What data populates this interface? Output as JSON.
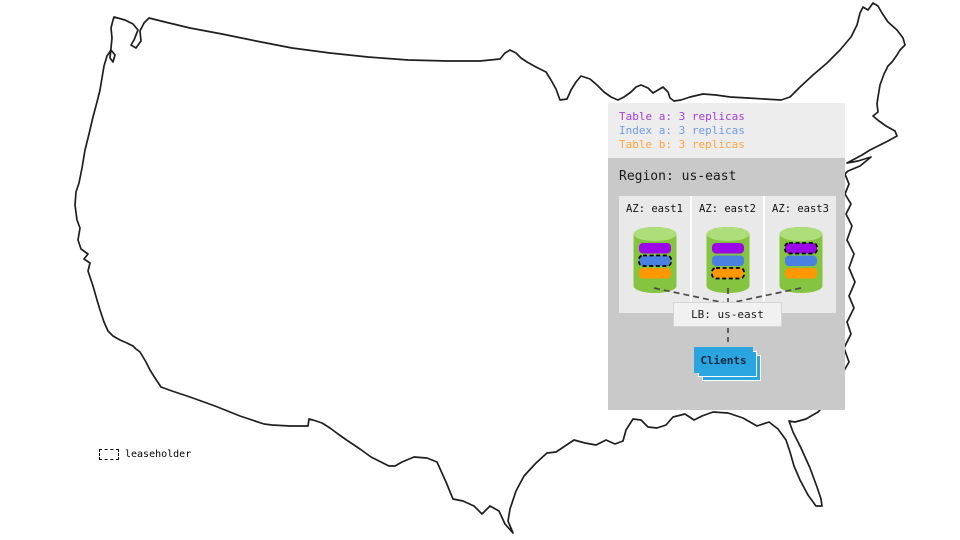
{
  "legend": {
    "items": [
      {
        "id": "table-a",
        "label": "Table a: 3 replicas",
        "color": "#a43ddb"
      },
      {
        "id": "index-a",
        "label": "Index a: 3 replicas",
        "color": "#6e9ae8"
      },
      {
        "id": "table-b",
        "label": "Table b: 3 replicas",
        "color": "#ffa43d"
      }
    ]
  },
  "region": {
    "title": "Region: us-east",
    "azs": [
      {
        "label": "AZ: east1",
        "replicas": [
          {
            "type": "table-a",
            "leaseholder": false
          },
          {
            "type": "index-a",
            "leaseholder": true
          },
          {
            "type": "table-b",
            "leaseholder": false
          }
        ]
      },
      {
        "label": "AZ: east2",
        "replicas": [
          {
            "type": "table-a",
            "leaseholder": false
          },
          {
            "type": "index-a",
            "leaseholder": false
          },
          {
            "type": "table-b",
            "leaseholder": true
          }
        ]
      },
      {
        "label": "AZ: east3",
        "replicas": [
          {
            "type": "table-a",
            "leaseholder": true
          },
          {
            "type": "index-a",
            "leaseholder": false
          },
          {
            "type": "table-b",
            "leaseholder": false
          }
        ]
      }
    ]
  },
  "load_balancer": {
    "label": "LB: us-east"
  },
  "clients": {
    "label": "Clients"
  },
  "map_key": {
    "label": "leaseholder"
  },
  "colors": {
    "table-a": "#9b07e8",
    "index-a": "#4a80e0",
    "table-b": "#ff9800",
    "cylinder_body": "#85c440",
    "cylinder_top": "#aede7a",
    "clients_blue": "#2aa5e0",
    "map_stroke": "#1f1f1f",
    "connector": "#4d4d4d"
  }
}
